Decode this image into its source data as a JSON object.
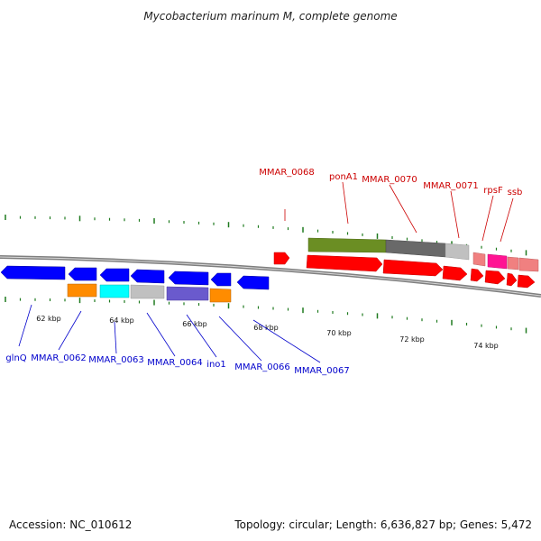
{
  "title": "Mycobacterium marinum M, complete genome",
  "footer": {
    "accession": "Accession: NC_010612",
    "info": "Topology: circular; Length: 6,636,827 bp; Genes: 5,472"
  },
  "colors": {
    "backbone": "#7f7f7f",
    "tick": "#1f7a1f",
    "forward_label": "#cc0000",
    "reverse_label": "#0000cc"
  },
  "kbp_labels": [
    "62 kbp",
    "64 kbp",
    "66 kbp",
    "68 kbp",
    "70 kbp",
    "72 kbp",
    "74 kbp"
  ],
  "forward_labels": [
    "MMAR_0068",
    "ponA1",
    "MMAR_0070",
    "MMAR_0071",
    "rpsF",
    "ssb"
  ],
  "reverse_labels": [
    "glnQ",
    "MMAR_0062",
    "MMAR_0063",
    "MMAR_0064",
    "ino1",
    "MMAR_0066",
    "MMAR_0067"
  ],
  "feature_colors": {
    "cds_forward": "#ff0000",
    "cds_reverse": "#0000ff",
    "olive": "#6b8e23",
    "dark_gray": "#696969",
    "light_gray": "#c0c0c0",
    "pink": "#f08080",
    "magenta": "#ff1493",
    "orange": "#ff8c00",
    "cyan": "#00ffff",
    "slate_blue": "#6a5acd"
  }
}
